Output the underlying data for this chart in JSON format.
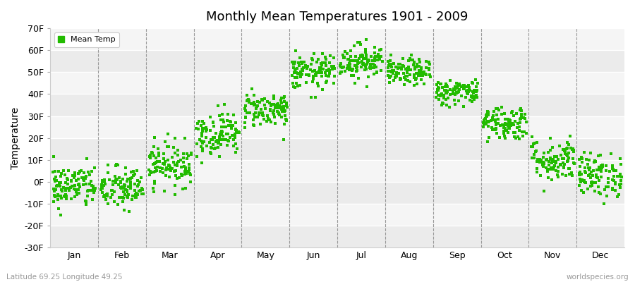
{
  "title": "Monthly Mean Temperatures 1901 - 2009",
  "ylabel": "Temperature",
  "xlabel_labels": [
    "Jan",
    "Feb",
    "Mar",
    "Apr",
    "May",
    "Jun",
    "Jul",
    "Aug",
    "Sep",
    "Oct",
    "Nov",
    "Dec"
  ],
  "ytick_labels": [
    "-30F",
    "-20F",
    "-10F",
    "0F",
    "10F",
    "20F",
    "30F",
    "40F",
    "50F",
    "60F",
    "70F"
  ],
  "ytick_values": [
    -30,
    -20,
    -10,
    0,
    10,
    20,
    30,
    40,
    50,
    60,
    70
  ],
  "ylim": [
    -30,
    70
  ],
  "dot_color": "#22BB00",
  "bg_light": "#F0F0F0",
  "bg_dark": "#E0E0E0",
  "legend_label": "Mean Temp",
  "footer_left": "Latitude 69.25 Longitude 49.25",
  "footer_right": "worldspecies.org",
  "n_years": 109,
  "monthly_means": {
    "Jan": {
      "mean": -2,
      "std": 5
    },
    "Feb": {
      "mean": -3,
      "std": 5
    },
    "Mar": {
      "mean": 8,
      "std": 5
    },
    "Apr": {
      "mean": 22,
      "std": 5
    },
    "May": {
      "mean": 33,
      "std": 4
    },
    "Jun": {
      "mean": 50,
      "std": 4
    },
    "Jul": {
      "mean": 55,
      "std": 4
    },
    "Aug": {
      "mean": 50,
      "std": 3
    },
    "Sep": {
      "mean": 41,
      "std": 3
    },
    "Oct": {
      "mean": 27,
      "std": 4
    },
    "Nov": {
      "mean": 10,
      "std": 5
    },
    "Dec": {
      "mean": 3,
      "std": 5
    }
  }
}
